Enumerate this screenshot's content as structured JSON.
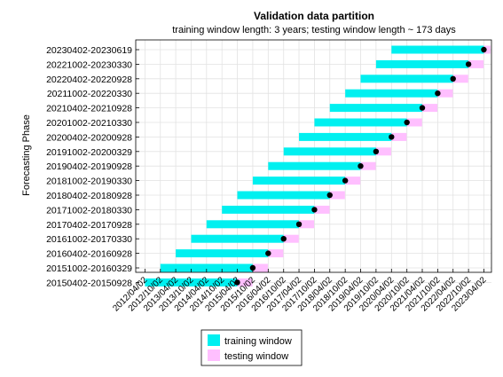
{
  "chart_data": {
    "type": "bar",
    "orientation": "horizontal-ranges",
    "title": "Validation data partition",
    "subtitle": "training window length: 3 years; testing window length ~ 173 days",
    "xlabel": "",
    "ylabel": "Forecasting Phase",
    "grid": true,
    "legend_placement": "bottom-left",
    "x_ticks": [
      "2012/04/02",
      "2012/10/02",
      "2013/04/02",
      "2013/10/02",
      "2014/04/02",
      "2014/10/02",
      "2015/04/02",
      "2015/10/02",
      "2016/04/02",
      "2016/10/02",
      "2017/04/02",
      "2017/10/02",
      "2018/04/02",
      "2018/10/02",
      "2019/04/02",
      "2019/10/02",
      "2020/04/02",
      "2020/10/02",
      "2021/04/02",
      "2021/10/02",
      "2022/04/02",
      "2022/10/02",
      "2023/04/02"
    ],
    "xlim": [
      "2011/12/15",
      "2023/07/01"
    ],
    "series": [
      {
        "name": "training window",
        "color": "#00f0f0"
      },
      {
        "name": "testing window",
        "color": "#ffbfff"
      }
    ],
    "marker_color": "#000000",
    "phases": [
      {
        "label": "20150402-20150928",
        "train_start": "2012/04/02",
        "train_end": "2015/04/01",
        "test_start": "2015/04/02",
        "test_end": "2015/09/28"
      },
      {
        "label": "20151002-20160329",
        "train_start": "2012/10/02",
        "train_end": "2015/10/01",
        "test_start": "2015/10/02",
        "test_end": "2016/03/29"
      },
      {
        "label": "20160402-20160928",
        "train_start": "2013/04/02",
        "train_end": "2016/04/01",
        "test_start": "2016/04/02",
        "test_end": "2016/09/28"
      },
      {
        "label": "20161002-20170330",
        "train_start": "2013/10/02",
        "train_end": "2016/10/01",
        "test_start": "2016/10/02",
        "test_end": "2017/03/30"
      },
      {
        "label": "20170402-20170928",
        "train_start": "2014/04/02",
        "train_end": "2017/04/01",
        "test_start": "2017/04/02",
        "test_end": "2017/09/28"
      },
      {
        "label": "20171002-20180330",
        "train_start": "2014/10/02",
        "train_end": "2017/10/01",
        "test_start": "2017/10/02",
        "test_end": "2018/03/30"
      },
      {
        "label": "20180402-20180928",
        "train_start": "2015/04/02",
        "train_end": "2018/04/01",
        "test_start": "2018/04/02",
        "test_end": "2018/09/28"
      },
      {
        "label": "20181002-20190330",
        "train_start": "2015/10/02",
        "train_end": "2018/10/01",
        "test_start": "2018/10/02",
        "test_end": "2019/03/30"
      },
      {
        "label": "20190402-20190928",
        "train_start": "2016/04/02",
        "train_end": "2019/04/01",
        "test_start": "2019/04/02",
        "test_end": "2019/09/28"
      },
      {
        "label": "20191002-20200329",
        "train_start": "2016/10/02",
        "train_end": "2019/10/01",
        "test_start": "2019/10/02",
        "test_end": "2020/03/29"
      },
      {
        "label": "20200402-20200928",
        "train_start": "2017/04/02",
        "train_end": "2020/04/01",
        "test_start": "2020/04/02",
        "test_end": "2020/09/28"
      },
      {
        "label": "20201002-20210330",
        "train_start": "2017/10/02",
        "train_end": "2020/10/01",
        "test_start": "2020/10/02",
        "test_end": "2021/03/30"
      },
      {
        "label": "20210402-20210928",
        "train_start": "2018/04/02",
        "train_end": "2021/04/01",
        "test_start": "2021/04/02",
        "test_end": "2021/09/28"
      },
      {
        "label": "20211002-20220330",
        "train_start": "2018/10/02",
        "train_end": "2021/10/01",
        "test_start": "2021/10/02",
        "test_end": "2022/03/30"
      },
      {
        "label": "20220402-20220928",
        "train_start": "2019/04/02",
        "train_end": "2022/04/01",
        "test_start": "2022/04/02",
        "test_end": "2022/09/28"
      },
      {
        "label": "20221002-20230330",
        "train_start": "2019/10/02",
        "train_end": "2022/10/01",
        "test_start": "2022/10/02",
        "test_end": "2023/03/30"
      },
      {
        "label": "20230402-20230619",
        "train_start": "2020/04/02",
        "train_end": "2023/04/01",
        "test_start": "2023/04/02",
        "test_end": "2023/06/19"
      }
    ]
  }
}
